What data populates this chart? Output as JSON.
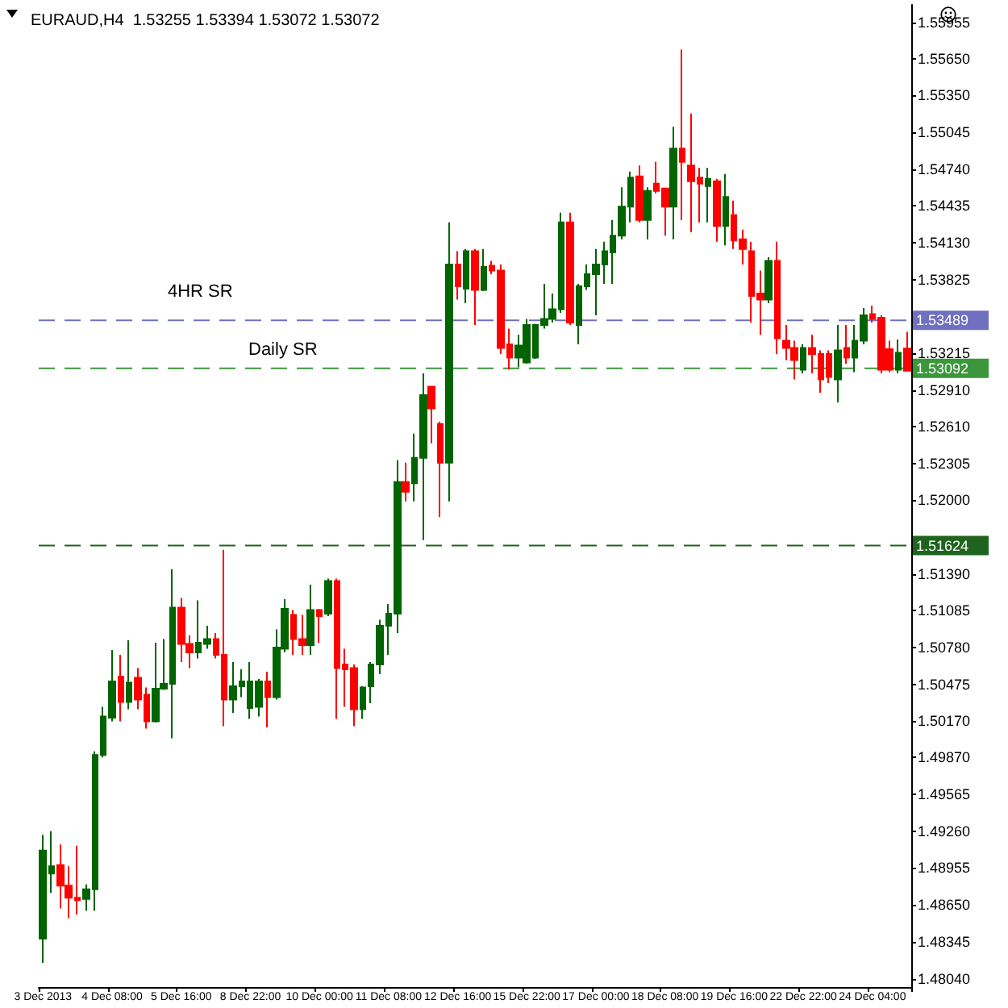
{
  "chart_data": {
    "type": "candlestick",
    "title": "EURAUD,H4  1.53255 1.53394 1.53072 1.53072",
    "categories": [
      "3 Dec 2013",
      null,
      null,
      null,
      null,
      null,
      null,
      null,
      "4 Dec 08:00",
      null,
      null,
      null,
      null,
      null,
      null,
      null,
      "5 Dec 16:00",
      null,
      null,
      null,
      null,
      null,
      null,
      null,
      "8 Dec 22:00",
      null,
      null,
      null,
      null,
      null,
      null,
      null,
      "10 Dec 00:00",
      null,
      null,
      null,
      null,
      null,
      null,
      null,
      "11 Dec 08:00",
      null,
      null,
      null,
      null,
      null,
      null,
      null,
      "12 Dec 16:00",
      null,
      null,
      null,
      null,
      null,
      null,
      null,
      "15 Dec 22:00",
      null,
      null,
      null,
      null,
      null,
      null,
      null,
      "17 Dec 00:00",
      null,
      null,
      null,
      null,
      null,
      null,
      null,
      "18 Dec 08:00",
      null,
      null,
      null,
      null,
      null,
      null,
      null,
      "19 Dec 16:00",
      null,
      null,
      null,
      null,
      null,
      null,
      null,
      "22 Dec 22:00",
      null,
      null,
      null,
      null,
      null,
      null,
      null,
      "24 Dec 04:00",
      null,
      null,
      null,
      null
    ],
    "ohlc": [
      [
        1.4837,
        1.4923,
        1.4817,
        1.491
      ],
      [
        1.4891,
        1.4926,
        1.4875,
        1.4897
      ],
      [
        1.4898,
        1.4915,
        1.4862,
        1.4881
      ],
      [
        1.4881,
        1.4897,
        1.4854,
        1.4871
      ],
      [
        1.4871,
        1.4914,
        1.4857,
        1.4869
      ],
      [
        1.487,
        1.4882,
        1.486,
        1.4878
      ],
      [
        1.4878,
        1.4992,
        1.486,
        1.4989
      ],
      [
        1.4989,
        1.5029,
        1.4987,
        1.5021
      ],
      [
        1.502,
        1.5076,
        1.5017,
        1.505
      ],
      [
        1.5054,
        1.5072,
        1.5017,
        1.5033
      ],
      [
        1.5033,
        1.5084,
        1.5027,
        1.5049
      ],
      [
        1.5053,
        1.5061,
        1.5027,
        1.5035
      ],
      [
        1.5039,
        1.5045,
        1.5011,
        1.5017
      ],
      [
        1.5017,
        1.5082,
        1.5016,
        1.5044
      ],
      [
        1.5044,
        1.5085,
        1.5043,
        1.5048
      ],
      [
        1.5048,
        1.5143,
        1.5003,
        1.5111
      ],
      [
        1.5111,
        1.5119,
        1.5066,
        1.5081
      ],
      [
        1.5081,
        1.5088,
        1.5061,
        1.5074
      ],
      [
        1.5074,
        1.5117,
        1.5069,
        1.5082
      ],
      [
        1.5081,
        1.5096,
        1.5077,
        1.5085
      ],
      [
        1.5085,
        1.509,
        1.5069,
        1.5072
      ],
      [
        1.5072,
        1.5159,
        1.5013,
        1.5035
      ],
      [
        1.5035,
        1.5066,
        1.5024,
        1.5046
      ],
      [
        1.5046,
        1.506,
        1.5037,
        1.505
      ],
      [
        1.5028,
        1.5066,
        1.5019,
        1.505
      ],
      [
        1.5029,
        1.5052,
        1.5021,
        1.505
      ],
      [
        1.505,
        1.5058,
        1.5012,
        1.5037
      ],
      [
        1.5037,
        1.5093,
        1.5035,
        1.5078
      ],
      [
        1.5077,
        1.5118,
        1.5074,
        1.511
      ],
      [
        1.5105,
        1.5109,
        1.5072,
        1.5085
      ],
      [
        1.5085,
        1.5105,
        1.5072,
        1.508
      ],
      [
        1.508,
        1.513,
        1.5072,
        1.5109
      ],
      [
        1.5109,
        1.511,
        1.5082,
        1.5104
      ],
      [
        1.5106,
        1.5135,
        1.5104,
        1.5133
      ],
      [
        1.5133,
        1.5135,
        1.5019,
        1.5061
      ],
      [
        1.5064,
        1.5077,
        1.5029,
        1.506
      ],
      [
        1.5061,
        1.5064,
        1.5013,
        1.5027
      ],
      [
        1.5027,
        1.5046,
        1.5019,
        1.5045
      ],
      [
        1.5046,
        1.5066,
        1.5032,
        1.5064
      ],
      [
        1.5064,
        1.5101,
        1.5056,
        1.5096
      ],
      [
        1.5096,
        1.5114,
        1.5072,
        1.5106
      ],
      [
        1.5106,
        1.5233,
        1.509,
        1.5215
      ],
      [
        1.5215,
        1.5231,
        1.5199,
        1.5207
      ],
      [
        1.5214,
        1.5255,
        1.5199,
        1.5235
      ],
      [
        1.5235,
        1.5305,
        1.5167,
        1.5287
      ],
      [
        1.5294,
        1.5294,
        1.5247,
        1.5276
      ],
      [
        1.5263,
        1.5265,
        1.5186,
        1.5231
      ],
      [
        1.5231,
        1.543,
        1.5199,
        1.5395
      ],
      [
        1.5395,
        1.5406,
        1.5366,
        1.5377
      ],
      [
        1.5375,
        1.5408,
        1.5363,
        1.5406
      ],
      [
        1.5406,
        1.5408,
        1.5345,
        1.5374
      ],
      [
        1.5374,
        1.5408,
        1.5373,
        1.5393
      ],
      [
        1.5394,
        1.5398,
        1.5387,
        1.539
      ],
      [
        1.539,
        1.5395,
        1.5321,
        1.5326
      ],
      [
        1.5329,
        1.5342,
        1.5308,
        1.5318
      ],
      [
        1.5318,
        1.5337,
        1.531,
        1.5328
      ],
      [
        1.5314,
        1.535,
        1.5313,
        1.5345
      ],
      [
        1.5318,
        1.5346,
        1.5317,
        1.5345
      ],
      [
        1.5345,
        1.5379,
        1.5342,
        1.535
      ],
      [
        1.535,
        1.5371,
        1.5347,
        1.5358
      ],
      [
        1.5358,
        1.5438,
        1.5355,
        1.543
      ],
      [
        1.543,
        1.5438,
        1.5345,
        1.5347
      ],
      [
        1.5345,
        1.5379,
        1.5329,
        1.5377
      ],
      [
        1.5377,
        1.5395,
        1.5374,
        1.5387
      ],
      [
        1.5387,
        1.5408,
        1.5353,
        1.5395
      ],
      [
        1.5395,
        1.5414,
        1.5379,
        1.5406
      ],
      [
        1.5405,
        1.5432,
        1.5379,
        1.5419
      ],
      [
        1.5419,
        1.5459,
        1.5416,
        1.5443
      ],
      [
        1.5443,
        1.5472,
        1.543,
        1.5467
      ],
      [
        1.5468,
        1.5477,
        1.543,
        1.5432
      ],
      [
        1.5432,
        1.5459,
        1.5416,
        1.5456
      ],
      [
        1.5462,
        1.548,
        1.5454,
        1.5456
      ],
      [
        1.5458,
        1.5458,
        1.5419,
        1.5443
      ],
      [
        1.5443,
        1.5509,
        1.5416,
        1.5491
      ],
      [
        1.5491,
        1.5573,
        1.5432,
        1.548
      ],
      [
        1.5477,
        1.552,
        1.5422,
        1.5464
      ],
      [
        1.5467,
        1.5475,
        1.543,
        1.5462
      ],
      [
        1.546,
        1.5475,
        1.543,
        1.5466
      ],
      [
        1.5464,
        1.5466,
        1.5414,
        1.5427
      ],
      [
        1.5427,
        1.547,
        1.5411,
        1.5451
      ],
      [
        1.5436,
        1.5448,
        1.5408,
        1.5415
      ],
      [
        1.5416,
        1.5424,
        1.5395,
        1.5408
      ],
      [
        1.5406,
        1.5414,
        1.5347,
        1.5369
      ],
      [
        1.5371,
        1.539,
        1.5337,
        1.5366
      ],
      [
        1.5366,
        1.5401,
        1.5363,
        1.5398
      ],
      [
        1.5398,
        1.5414,
        1.5321,
        1.5334
      ],
      [
        1.5332,
        1.5345,
        1.5316,
        1.5326
      ],
      [
        1.5326,
        1.5332,
        1.53,
        1.5316
      ],
      [
        1.5308,
        1.5329,
        1.5305,
        1.5326
      ],
      [
        1.5326,
        1.5337,
        1.5305,
        1.5321
      ],
      [
        1.5321,
        1.5324,
        1.5289,
        1.53
      ],
      [
        1.5321,
        1.5324,
        1.5297,
        1.5302
      ],
      [
        1.53,
        1.5345,
        1.5281,
        1.5324
      ],
      [
        1.5326,
        1.5345,
        1.5313,
        1.5318
      ],
      [
        1.5318,
        1.5345,
        1.5306,
        1.5332
      ],
      [
        1.5332,
        1.5359,
        1.5329,
        1.5353
      ],
      [
        1.5354,
        1.5361,
        1.5347,
        1.535
      ],
      [
        1.5351,
        1.5353,
        1.5305,
        1.5308
      ],
      [
        1.5325,
        1.5332,
        1.5306,
        1.5308
      ],
      [
        1.5308,
        1.5333,
        1.5305,
        1.5322
      ],
      [
        1.53255,
        1.53394,
        1.53072,
        1.53072
      ]
    ],
    "colors": [
      "#006400",
      "#006400",
      "#ff0000",
      "#ff0000",
      "#ff0000",
      "#006400",
      "#006400",
      "#006400",
      "#006400",
      "#ff0000",
      "#006400",
      "#ff0000",
      "#ff0000",
      "#006400",
      "#006400",
      "#006400",
      "#ff0000",
      "#ff0000",
      "#006400",
      "#006400",
      "#ff0000",
      "#ff0000",
      "#006400",
      "#006400",
      "#006400",
      "#006400",
      "#ff0000",
      "#006400",
      "#006400",
      "#ff0000",
      "#ff0000",
      "#006400",
      "#ff0000",
      "#006400",
      "#ff0000",
      "#ff0000",
      "#ff0000",
      "#006400",
      "#006400",
      "#006400",
      "#006400",
      "#006400",
      "#ff0000",
      "#006400",
      "#006400",
      "#ff0000",
      "#ff0000",
      "#006400",
      "#ff0000",
      "#006400",
      "#ff0000",
      "#006400",
      "#ff0000",
      "#ff0000",
      "#ff0000",
      "#006400",
      "#006400",
      "#006400",
      "#006400",
      "#006400",
      "#006400",
      "#ff0000",
      "#006400",
      "#006400",
      "#006400",
      "#006400",
      "#006400",
      "#006400",
      "#006400",
      "#ff0000",
      "#006400",
      "#ff0000",
      "#ff0000",
      "#006400",
      "#ff0000",
      "#ff0000",
      "#ff0000",
      "#006400",
      "#ff0000",
      "#006400",
      "#ff0000",
      "#ff0000",
      "#ff0000",
      "#ff0000",
      "#006400",
      "#ff0000",
      "#ff0000",
      "#ff0000",
      "#006400",
      "#ff0000",
      "#ff0000",
      "#ff0000",
      "#006400",
      "#ff0000",
      "#006400",
      "#006400",
      "#ff0000",
      "#ff0000",
      "#ff0000",
      "#006400",
      "#ff0000"
    ],
    "annotations": [
      "1.53489",
      "1.53092",
      "1.51624"
    ],
    "ylim": [
      1.4797,
      1.561
    ],
    "yticks": [
      1.55955,
      {
        "value": 1.5565,
        "label": "1.55650"
      },
      {
        "value": 1.5535,
        "label": "1.55350"
      },
      1.55045,
      {
        "value": 1.5474,
        "label": "1.54740"
      },
      1.54435,
      {
        "value": 1.5413,
        "label": "1.54130"
      },
      1.53825,
      {
        "value": 1.5352,
        "label": null
      },
      1.53215,
      {
        "value": 1.5291,
        "label": "1.52910"
      },
      {
        "value": 1.5261,
        "label": "1.52610"
      },
      1.52305,
      {
        "value": 1.52,
        "label": "1.52000"
      },
      {
        "value": 1.51695,
        "label": null
      },
      {
        "value": 1.5139,
        "label": "1.51390"
      },
      1.51085,
      {
        "value": 1.5078,
        "label": "1.50780"
      },
      1.50475,
      {
        "value": 1.5017,
        "label": "1.50170"
      },
      {
        "value": 1.4987,
        "label": "1.49870"
      },
      1.49565,
      {
        "value": 1.4926,
        "label": "1.49260"
      },
      1.48955,
      {
        "value": 1.4865,
        "label": "1.48650"
      },
      1.48345,
      {
        "value": 1.4804,
        "label": "1.48040"
      }
    ],
    "grid": false,
    "ref_lines": [
      {
        "axis": "y",
        "value": 1.53489,
        "label": "4HR SR",
        "color": "#7070c0",
        "line_style": "dashed"
      },
      {
        "axis": "y",
        "value": 1.53092,
        "label": "Daily SR",
        "color": "#3c963c",
        "line_style": "dashed"
      },
      {
        "axis": "y",
        "value": 1.51624,
        "label": null,
        "color": "#1e641e",
        "line_style": "dashed"
      }
    ]
  }
}
